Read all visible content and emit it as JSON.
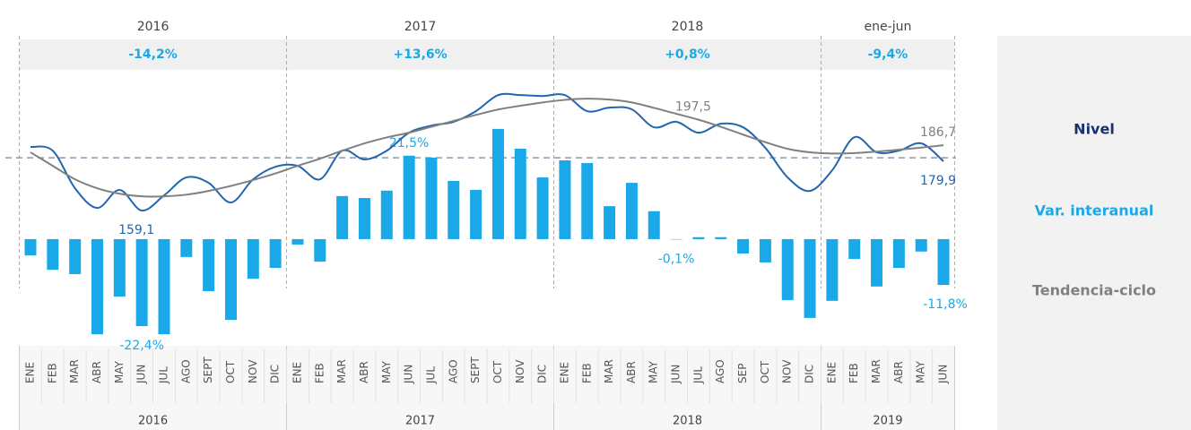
{
  "chart_data": {
    "type": "bar_line",
    "periods": [
      {
        "label": "2016",
        "change": "-14,2%"
      },
      {
        "label": "2017",
        "change": "+13,6%"
      },
      {
        "label": "2018",
        "change": "+0,8%"
      },
      {
        "label": "ene-jun",
        "change": "-9,4%"
      }
    ],
    "categories": [
      "ENE",
      "FEB",
      "MAR",
      "ABR",
      "MAY",
      "JUN",
      "JUL",
      "AGO",
      "SEPT",
      "OCT",
      "NOV",
      "DIC",
      "ENE",
      "FEB",
      "MAR",
      "ABR",
      "MAY",
      "JUN",
      "JUL",
      "AGO",
      "SEPT",
      "OCT",
      "NOV",
      "DIC",
      "ENE",
      "FEB",
      "MAR",
      "ABR",
      "MAY",
      "JUN",
      "JUL",
      "AGO",
      "SEP",
      "OCT",
      "NOV",
      "DIC",
      "ENE",
      "FEB",
      "MAR",
      "ABR",
      "MAY",
      "JUN"
    ],
    "category_groups": [
      "2016",
      "2017",
      "2018",
      "2019"
    ],
    "ylim": [
      -28.4,
      44.3
    ],
    "y2lim": [
      100.4,
      219.7
    ],
    "reference": 181.4,
    "series": [
      {
        "name": "Nivel",
        "type": "line",
        "axis": "y2",
        "color": "#2266b0",
        "legend_color": "#1b2f6e",
        "values": [
          186.0,
          184.4,
          168.5,
          160.2,
          167.8,
          159.1,
          165.5,
          173.1,
          170.8,
          162.5,
          172.3,
          177.6,
          178.0,
          172.3,
          184.4,
          180.7,
          184.4,
          192.0,
          195.0,
          196.6,
          201.1,
          207.9,
          207.9,
          207.5,
          207.9,
          201.1,
          202.6,
          201.9,
          194.3,
          196.6,
          192.0,
          195.8,
          194.3,
          185.6,
          173.1,
          167.4,
          176.1,
          190.1,
          183.7,
          184.4,
          187.5,
          179.9
        ],
        "value_labels": [
          null,
          null,
          null,
          null,
          null,
          "159,1",
          null,
          null,
          null,
          null,
          null,
          null,
          null,
          null,
          null,
          null,
          null,
          null,
          null,
          null,
          null,
          null,
          null,
          null,
          null,
          null,
          null,
          null,
          null,
          null,
          null,
          null,
          null,
          null,
          null,
          null,
          null,
          null,
          null,
          null,
          null,
          "179,9"
        ]
      },
      {
        "name": "Var. interanual",
        "type": "bar",
        "color": "#1aa9e8",
        "legend_color": "#1aa9e8",
        "values": [
          -4.2,
          -7.9,
          -9.0,
          -24.5,
          -14.8,
          -22.4,
          -24.5,
          -4.6,
          -13.4,
          -20.8,
          -10.2,
          -7.4,
          -1.4,
          -5.8,
          11.1,
          10.6,
          12.5,
          21.5,
          21.0,
          15.0,
          12.7,
          28.4,
          23.3,
          15.9,
          20.3,
          19.6,
          8.5,
          14.5,
          7.2,
          -0.1,
          0.5,
          0.5,
          -3.7,
          -6.0,
          -15.7,
          -20.3,
          -15.9,
          -5.1,
          -12.2,
          -7.4,
          -3.2,
          -11.8
        ],
        "value_labels": [
          null,
          null,
          null,
          null,
          null,
          "-22,4%",
          null,
          null,
          null,
          null,
          null,
          null,
          null,
          null,
          null,
          null,
          null,
          "21,5%",
          null,
          null,
          null,
          null,
          null,
          null,
          null,
          null,
          null,
          null,
          null,
          "-0,1%",
          null,
          null,
          null,
          null,
          null,
          null,
          null,
          null,
          null,
          null,
          null,
          "-11,8%"
        ]
      },
      {
        "name": "Tendencia-ciclo",
        "type": "line",
        "axis": "y2",
        "color": "#808080",
        "legend_color": "#808080",
        "values": [
          183.7,
          178.0,
          172.3,
          168.5,
          166.2,
          165.1,
          165.1,
          165.8,
          167.4,
          169.5,
          172.0,
          174.8,
          178.0,
          181.0,
          184.4,
          187.5,
          190.0,
          192.0,
          194.5,
          197.0,
          199.5,
          201.8,
          203.4,
          204.8,
          205.9,
          206.4,
          206.0,
          204.8,
          202.5,
          200.0,
          197.5,
          194.5,
          191.2,
          188.0,
          185.2,
          183.7,
          183.2,
          183.4,
          184.0,
          184.8,
          185.7,
          186.7
        ],
        "value_labels": [
          null,
          null,
          null,
          null,
          null,
          null,
          null,
          null,
          null,
          null,
          null,
          null,
          null,
          null,
          null,
          null,
          null,
          null,
          null,
          null,
          null,
          null,
          null,
          null,
          null,
          null,
          null,
          null,
          null,
          null,
          "197,5",
          null,
          null,
          null,
          null,
          null,
          null,
          null,
          null,
          null,
          null,
          "186,7"
        ]
      }
    ]
  }
}
